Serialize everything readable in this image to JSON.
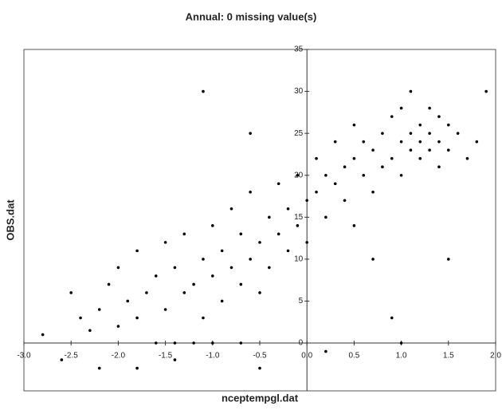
{
  "chart_data": {
    "type": "scatter",
    "title": "Annual: 0 missing value(s)",
    "x_label": "nceptempgl.dat",
    "y_label": "OBS.dat",
    "color": "#000000",
    "xlim": [
      -3,
      2
    ],
    "ylim": [
      -5.7,
      35
    ],
    "xticks": [
      {
        "value": -3,
        "label": "-3.0"
      },
      {
        "value": -2.5,
        "label": "-2.5"
      },
      {
        "value": -2,
        "label": "-2.0"
      },
      {
        "value": -1.5,
        "label": "-1.5"
      },
      {
        "value": -1,
        "label": "-1.0"
      },
      {
        "value": -0.5,
        "label": "-0.5"
      },
      {
        "value": 0,
        "label": "0.0"
      },
      {
        "value": 0.5,
        "label": "0.5"
      },
      {
        "value": 1,
        "label": "1.0"
      },
      {
        "value": 1.5,
        "label": "1.5"
      },
      {
        "value": 2,
        "label": "2.0"
      }
    ],
    "yticks": [
      0,
      5,
      10,
      15,
      20,
      25,
      30,
      35
    ],
    "x": [
      -2.8,
      -2.6,
      -2.5,
      -2.4,
      -2.3,
      -2.2,
      -2.1,
      -2.0,
      -2.0,
      -1.9,
      -1.8,
      -1.8,
      -1.7,
      -1.6,
      -1.6,
      -1.5,
      -1.5,
      -1.4,
      -1.4,
      -1.3,
      -1.3,
      -1.2,
      -1.2,
      -1.1,
      -1.1,
      -1.0,
      -1.0,
      -1.0,
      -0.9,
      -0.9,
      -0.8,
      -0.8,
      -0.7,
      -0.7,
      -0.7,
      -0.6,
      -0.6,
      -0.5,
      -0.5,
      -0.5,
      -0.4,
      -0.4,
      -0.3,
      -0.3,
      -0.2,
      -0.2,
      -0.1,
      -0.1,
      0,
      0,
      0.1,
      0.1,
      0.2,
      0.2,
      0.3,
      0.3,
      0.4,
      0.4,
      0.5,
      0.5,
      0.5,
      0.6,
      0.6,
      0.7,
      0.7,
      0.8,
      0.8,
      0.9,
      0.9,
      1.0,
      1.0,
      1.0,
      1.1,
      1.1,
      1.1,
      1.2,
      1.2,
      1.2,
      1.3,
      1.3,
      1.3,
      1.4,
      1.4,
      1.4,
      1.5,
      1.5,
      1.6,
      1.7,
      1.8,
      1.9,
      -1.1,
      -0.6,
      0.9,
      1.0,
      1.5,
      0.7,
      -1.8,
      -1.4,
      0.2,
      -2.2
    ],
    "values": [
      1,
      -2,
      6,
      3,
      1.5,
      4,
      7,
      2,
      9,
      5,
      11,
      3,
      6,
      8,
      0,
      4,
      12,
      9,
      0,
      6,
      13,
      7,
      0,
      10,
      3,
      8,
      14,
      0,
      5,
      11,
      9,
      16,
      7,
      13,
      0,
      10,
      18,
      12,
      6,
      -3,
      15,
      9,
      13,
      19,
      11,
      16,
      14,
      20,
      17,
      12,
      18,
      22,
      15,
      20,
      19,
      24,
      17,
      21,
      22,
      26,
      14,
      20,
      24,
      23,
      18,
      25,
      21,
      27,
      22,
      24,
      28,
      20,
      25,
      23,
      30,
      24,
      26,
      22,
      25,
      28,
      23,
      24,
      27,
      21,
      26,
      23,
      25,
      22,
      24,
      30,
      30,
      25,
      3,
      0,
      10,
      10,
      -3,
      -2,
      -1,
      -3
    ]
  }
}
